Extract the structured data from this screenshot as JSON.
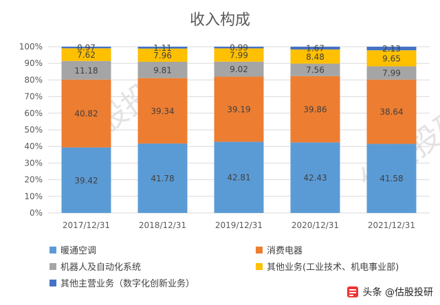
{
  "chart_data": {
    "type": "bar",
    "stacked": true,
    "title": "收入构成",
    "categories": [
      "2017/12/31",
      "2018/12/31",
      "2019/12/31",
      "2020/12/31",
      "2021/12/31"
    ],
    "series": [
      {
        "name": "暖通空调",
        "color": "#5B9BD5",
        "values": [
          39.42,
          41.78,
          42.81,
          42.43,
          41.58
        ]
      },
      {
        "name": "消费电器",
        "color": "#ED7D31",
        "values": [
          40.82,
          39.34,
          39.19,
          39.86,
          38.64
        ]
      },
      {
        "name": "机器人及自动化系统",
        "color": "#A5A5A5",
        "values": [
          11.18,
          9.81,
          9.02,
          7.56,
          7.99
        ]
      },
      {
        "name": "其他业务(工业技术、机电事业部)",
        "color": "#FFC000",
        "values": [
          7.62,
          7.96,
          7.99,
          8.48,
          9.65
        ]
      },
      {
        "name": "其他主营业务（数字化创新业务）",
        "color": "#4472C4",
        "values": [
          0.97,
          1.11,
          0.99,
          1.67,
          2.13
        ]
      }
    ],
    "y_ticks": [
      "0%",
      "10%",
      "20%",
      "30%",
      "40%",
      "50%",
      "60%",
      "70%",
      "80%",
      "90%",
      "100%"
    ],
    "ylim": [
      0,
      100
    ],
    "grid": true,
    "legend_position": "bottom"
  },
  "watermark": "估股投研",
  "credit": {
    "text": "头条 @估股投研",
    "icon": "toutiao-logo-icon"
  }
}
